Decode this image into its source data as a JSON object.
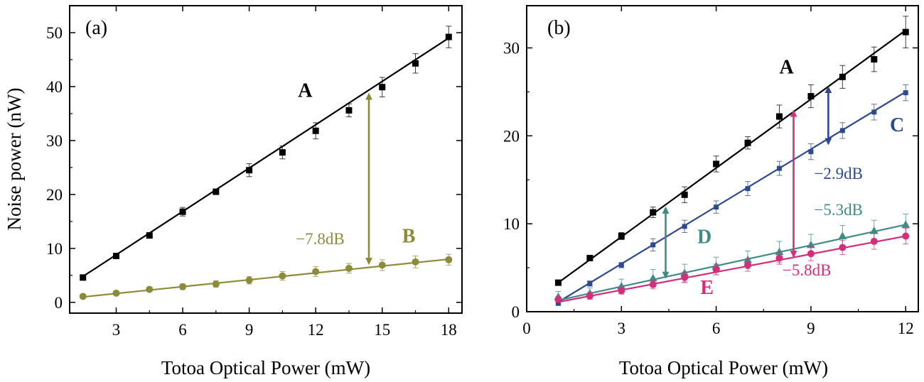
{
  "colors": {
    "A": "#000000",
    "B": "#8b8b3a",
    "C": "#2e4a8e",
    "D": "#3f8c86",
    "E": "#d62d7a"
  },
  "chart_data": [
    {
      "type": "line",
      "panel_label": "(a)",
      "xlabel": "Totoa Optical Power (mW)",
      "ylabel": "Noise power (nW)",
      "xlim": [
        0.9,
        18.6
      ],
      "ylim": [
        -2,
        55
      ],
      "xticks": [
        3,
        6,
        9,
        12,
        15,
        18
      ],
      "xtick_labels": [
        "3",
        "6",
        "9",
        "12",
        "15",
        "18"
      ],
      "yticks": [
        0,
        10,
        20,
        30,
        40,
        50
      ],
      "ytick_labels": [
        "0",
        "10",
        "20",
        "30",
        "40",
        "50"
      ],
      "grid": false,
      "series": [
        {
          "name": "A",
          "color_key": "A",
          "marker": "square",
          "x": [
            1.5,
            3,
            4.5,
            6,
            7.5,
            9,
            10.5,
            12,
            13.5,
            15,
            16.5,
            18
          ],
          "y": [
            4.6,
            8.6,
            12.4,
            16.8,
            20.5,
            24.5,
            27.8,
            31.8,
            35.6,
            39.9,
            44.3,
            49.2
          ],
          "err": [
            0.4,
            0.5,
            0.5,
            0.8,
            0.5,
            1.2,
            1.2,
            1.5,
            1.2,
            1.8,
            1.8,
            2.0
          ],
          "fit": [
            [
              1.5,
              4.8
            ],
            [
              18,
              49.0
            ]
          ]
        },
        {
          "name": "B",
          "color_key": "B",
          "marker": "circle",
          "x": [
            1.5,
            3,
            4.5,
            6,
            7.5,
            9,
            10.5,
            12,
            13.5,
            15,
            16.5,
            18
          ],
          "y": [
            1.1,
            1.7,
            2.4,
            2.9,
            3.4,
            4.1,
            4.9,
            5.7,
            6.3,
            6.9,
            7.5,
            7.9
          ],
          "err": [
            0.4,
            0.4,
            0.4,
            0.5,
            0.6,
            0.7,
            0.8,
            0.9,
            0.9,
            1.0,
            1.1,
            1.0
          ],
          "fit": [
            [
              1.5,
              1.0
            ],
            [
              18,
              8.0
            ]
          ]
        }
      ],
      "annotations": [
        {
          "type": "double-arrow",
          "color_key": "B",
          "x": 14.4,
          "y1": 38.6,
          "y2": 7.2
        },
        {
          "type": "text",
          "text": "−7.8dB",
          "color_key": "B",
          "x": 11.1,
          "y": 10.8
        },
        {
          "type": "series-label",
          "text": "A",
          "color_key": "A",
          "x": 11.2,
          "y": 38.1
        },
        {
          "type": "series-label",
          "text": "B",
          "color_key": "B",
          "x": 15.9,
          "y": 11.1
        }
      ]
    },
    {
      "type": "line",
      "panel_label": "(b)",
      "xlabel": "Totoa Optical Power (mW)",
      "ylabel": "",
      "xlim": [
        0,
        12.4
      ],
      "ylim": [
        0,
        34.8
      ],
      "xticks": [
        0,
        3,
        6,
        9,
        12
      ],
      "xtick_labels": [
        "0",
        "3",
        "6",
        "9",
        "12"
      ],
      "yticks": [
        0,
        10,
        20,
        30
      ],
      "ytick_labels": [
        "0",
        "10",
        "20",
        "30"
      ],
      "grid": false,
      "series": [
        {
          "name": "A",
          "color_key": "A",
          "marker": "square",
          "x": [
            1,
            2,
            3,
            4,
            5,
            6,
            7,
            8,
            9,
            10,
            11,
            12
          ],
          "y": [
            3.3,
            6.1,
            8.6,
            11.3,
            13.3,
            16.8,
            19.2,
            22.2,
            24.5,
            26.7,
            28.7,
            31.8
          ],
          "err": [
            0.3,
            0.3,
            0.4,
            0.6,
            0.9,
            0.9,
            0.7,
            1.3,
            1.3,
            1.3,
            1.4,
            1.8
          ],
          "fit": [
            [
              1,
              3.3
            ],
            [
              12,
              32.0
            ]
          ]
        },
        {
          "name": "C",
          "color_key": "C",
          "marker": "square",
          "x": [
            1,
            2,
            3,
            4,
            5,
            6,
            7,
            8,
            9,
            10,
            11,
            12
          ],
          "y": [
            1.0,
            3.2,
            5.3,
            7.6,
            9.7,
            11.9,
            14.0,
            16.3,
            18.2,
            20.6,
            22.7,
            24.9
          ],
          "err": [
            0.3,
            0.3,
            0.3,
            0.7,
            0.7,
            0.7,
            0.8,
            0.8,
            0.9,
            0.9,
            0.9,
            0.9
          ],
          "fit": [
            [
              1,
              1.1
            ],
            [
              12,
              25.0
            ]
          ]
        },
        {
          "name": "D",
          "color_key": "D",
          "marker": "triangle",
          "x": [
            1,
            2,
            3,
            4,
            5,
            6,
            7,
            8,
            9,
            10,
            11,
            12
          ],
          "y": [
            1.7,
            2.1,
            2.9,
            3.8,
            4.4,
            5.2,
            5.9,
            6.8,
            7.6,
            8.6,
            9.2,
            9.9
          ],
          "err": [
            0.6,
            0.6,
            0.8,
            1.0,
            1.0,
            1.0,
            1.0,
            1.2,
            1.2,
            1.2,
            1.2,
            1.2
          ],
          "fit": [
            [
              1,
              1.3
            ],
            [
              12,
              9.9
            ]
          ]
        },
        {
          "name": "E",
          "color_key": "E",
          "marker": "circle",
          "x": [
            1,
            2,
            3,
            4,
            5,
            6,
            7,
            8,
            9,
            10,
            11,
            12
          ],
          "y": [
            1.4,
            1.8,
            2.4,
            3.1,
            3.9,
            4.8,
            5.3,
            6.1,
            6.6,
            7.3,
            8.0,
            8.6
          ],
          "err": [
            0.3,
            0.4,
            0.4,
            0.5,
            0.6,
            0.6,
            0.7,
            0.7,
            0.8,
            0.8,
            0.9,
            0.9
          ],
          "fit": [
            [
              1,
              1.1
            ],
            [
              12,
              8.6
            ]
          ]
        }
      ],
      "annotations": [
        {
          "type": "double-arrow",
          "color_key": "C",
          "x": 9.55,
          "y1": 25.5,
          "y2": 19.1
        },
        {
          "type": "double-arrow",
          "color_key": "E",
          "x": 8.45,
          "y1": 22.8,
          "y2": 6.3
        },
        {
          "type": "double-arrow",
          "color_key": "D",
          "x": 4.4,
          "y1": 11.8,
          "y2": 3.9
        },
        {
          "type": "text",
          "text": "−2.9dB",
          "color_key": "C",
          "x": 9.1,
          "y": 15.1
        },
        {
          "type": "text",
          "text": "−5.3dB",
          "color_key": "D",
          "x": 9.1,
          "y": 11.0
        },
        {
          "type": "text",
          "text": "−5.8dB",
          "color_key": "E",
          "x": 8.1,
          "y": 4.1
        },
        {
          "type": "series-label",
          "text": "A",
          "color_key": "A",
          "x": 8.0,
          "y": 27.1
        },
        {
          "type": "series-label",
          "text": "C",
          "color_key": "C",
          "x": 11.5,
          "y": 20.5
        },
        {
          "type": "series-label",
          "text": "D",
          "color_key": "D",
          "x": 5.4,
          "y": 7.8
        },
        {
          "type": "series-label",
          "text": "E",
          "color_key": "E",
          "x": 5.5,
          "y": 2.0
        }
      ]
    }
  ]
}
